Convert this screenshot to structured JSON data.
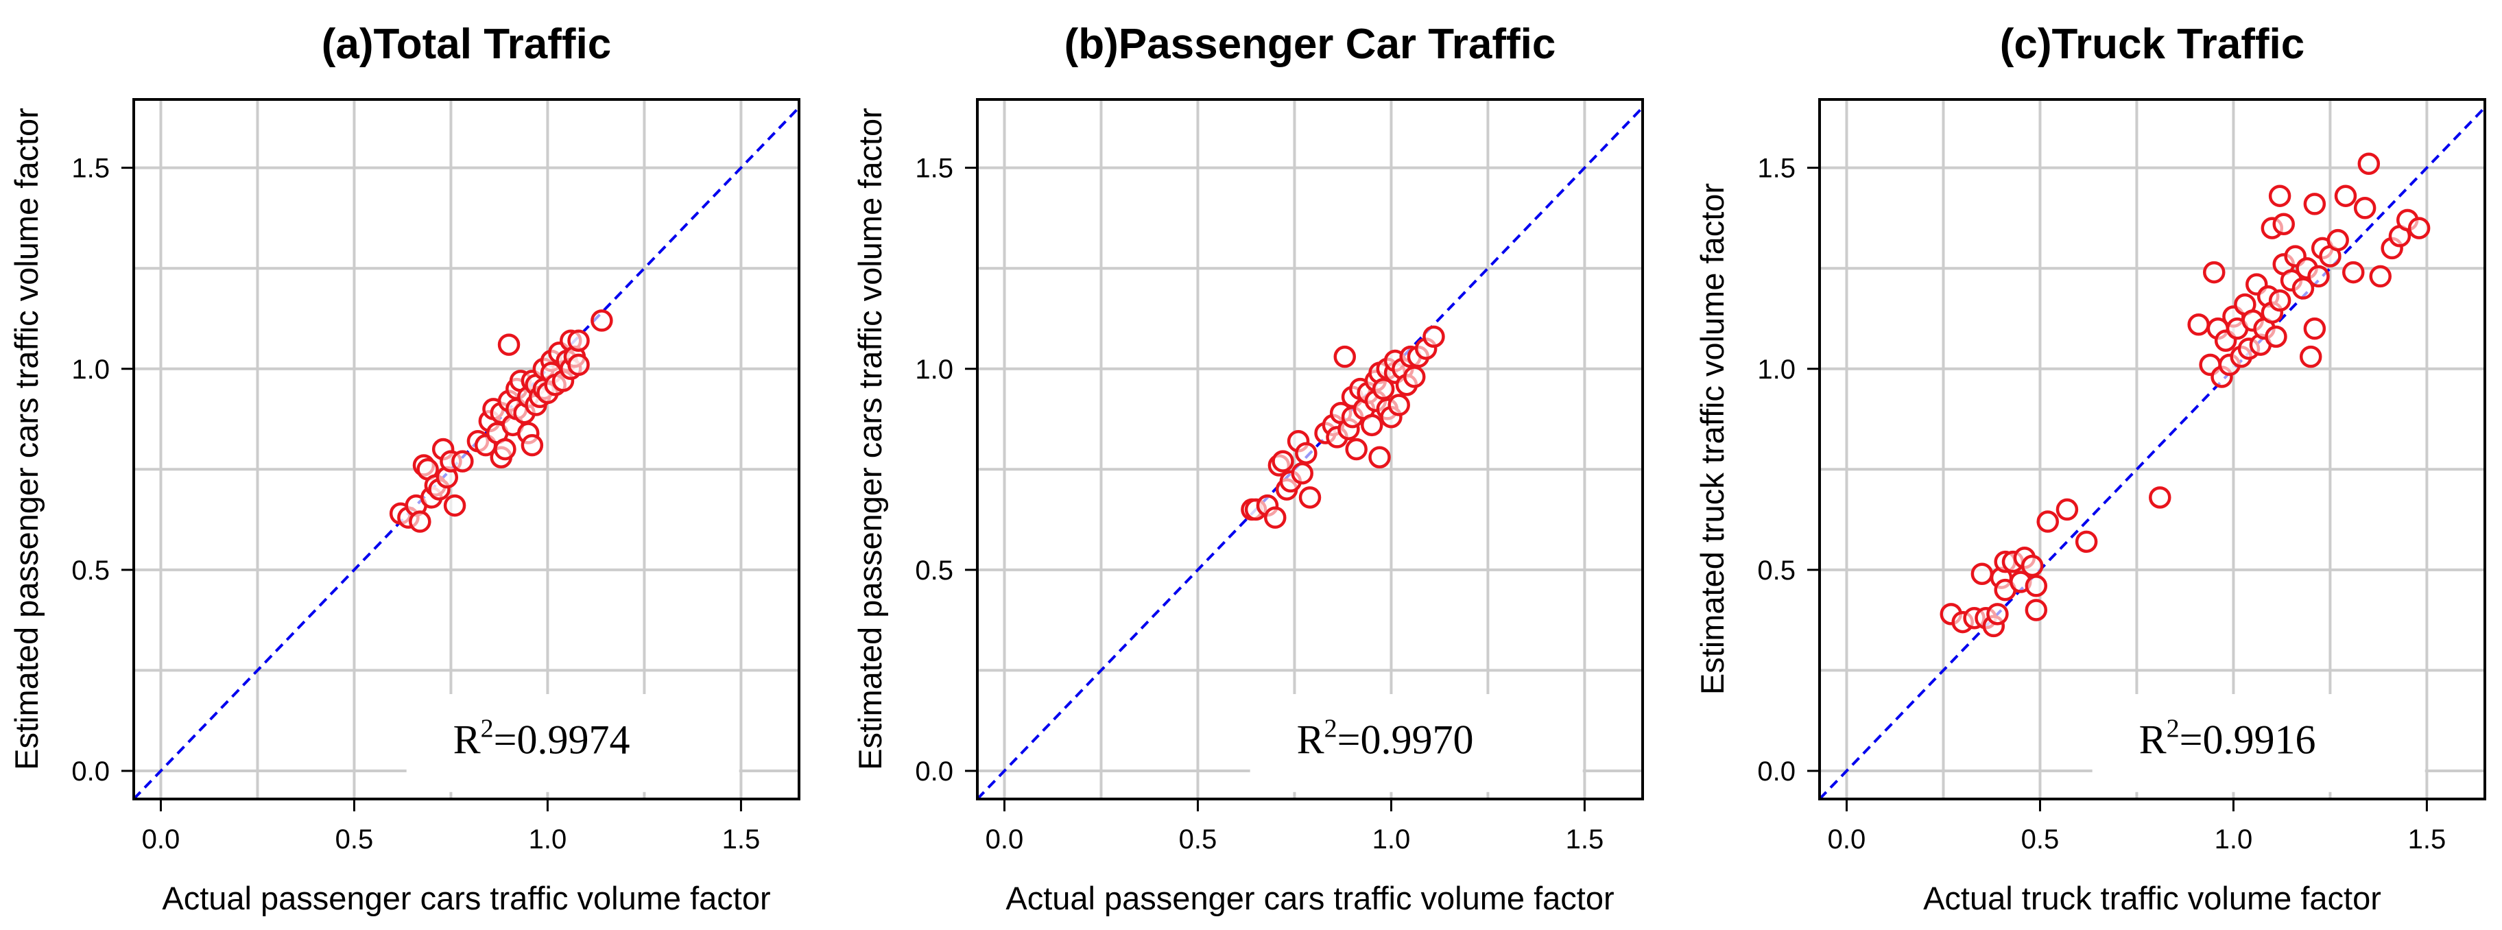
{
  "chart_data": [
    {
      "type": "scatter",
      "title": "(a)Total Traffic",
      "xlabel": "Actual passenger cars traffic volume factor",
      "ylabel": "Estimated passenger cars traffic volume factor",
      "xlim": [
        -0.07,
        1.65
      ],
      "ylim": [
        -0.07,
        1.67
      ],
      "xticks": [
        0.0,
        0.5,
        1.0,
        1.5
      ],
      "yticks": [
        0.0,
        0.5,
        1.0,
        1.5
      ],
      "xtick_labels": [
        "0.0",
        "0.5",
        "1.0",
        "1.5"
      ],
      "ytick_labels": [
        "0.0",
        "0.5",
        "1.0",
        "1.5"
      ],
      "grid": true,
      "r2_prefix": "R",
      "r2_sup": "2",
      "r2_value": "=0.9974",
      "marker_color": "#e8141c",
      "line_color": "#0000ee",
      "points": [
        [
          0.62,
          0.64
        ],
        [
          0.64,
          0.63
        ],
        [
          0.66,
          0.66
        ],
        [
          0.67,
          0.62
        ],
        [
          0.68,
          0.76
        ],
        [
          0.69,
          0.75
        ],
        [
          0.7,
          0.68
        ],
        [
          0.71,
          0.71
        ],
        [
          0.72,
          0.7
        ],
        [
          0.73,
          0.8
        ],
        [
          0.74,
          0.73
        ],
        [
          0.75,
          0.77
        ],
        [
          0.76,
          0.66
        ],
        [
          0.78,
          0.77
        ],
        [
          0.82,
          0.82
        ],
        [
          0.84,
          0.81
        ],
        [
          0.85,
          0.87
        ],
        [
          0.86,
          0.9
        ],
        [
          0.87,
          0.84
        ],
        [
          0.88,
          0.78
        ],
        [
          0.88,
          0.89
        ],
        [
          0.89,
          0.8
        ],
        [
          0.9,
          1.06
        ],
        [
          0.9,
          0.92
        ],
        [
          0.91,
          0.86
        ],
        [
          0.92,
          0.95
        ],
        [
          0.92,
          0.9
        ],
        [
          0.93,
          0.97
        ],
        [
          0.94,
          0.89
        ],
        [
          0.95,
          0.93
        ],
        [
          0.95,
          0.84
        ],
        [
          0.96,
          0.97
        ],
        [
          0.96,
          0.81
        ],
        [
          0.97,
          0.91
        ],
        [
          0.97,
          0.96
        ],
        [
          0.98,
          0.93
        ],
        [
          0.99,
          1.0
        ],
        [
          0.99,
          0.95
        ],
        [
          1.0,
          0.94
        ],
        [
          1.01,
          1.02
        ],
        [
          1.01,
          0.99
        ],
        [
          1.02,
          0.96
        ],
        [
          1.03,
          1.04
        ],
        [
          1.04,
          0.97
        ],
        [
          1.05,
          1.02
        ],
        [
          1.06,
          1.0
        ],
        [
          1.06,
          1.07
        ],
        [
          1.07,
          1.03
        ],
        [
          1.08,
          1.07
        ],
        [
          1.08,
          1.01
        ],
        [
          1.14,
          1.12
        ]
      ]
    },
    {
      "type": "scatter",
      "title": "(b)Passenger Car Traffic",
      "xlabel": "Actual passenger cars traffic volume factor",
      "ylabel": "Estimated passenger cars traffic volume factor",
      "xlim": [
        -0.07,
        1.65
      ],
      "ylim": [
        -0.07,
        1.67
      ],
      "xticks": [
        0.0,
        0.5,
        1.0,
        1.5
      ],
      "yticks": [
        0.0,
        0.5,
        1.0,
        1.5
      ],
      "xtick_labels": [
        "0.0",
        "0.5",
        "1.0",
        "1.5"
      ],
      "ytick_labels": [
        "0.0",
        "0.5",
        "1.0",
        "1.5"
      ],
      "grid": true,
      "r2_prefix": "R",
      "r2_sup": "2",
      "r2_value": "=0.9970",
      "marker_color": "#e8141c",
      "line_color": "#0000ee",
      "points": [
        [
          0.64,
          0.65
        ],
        [
          0.65,
          0.65
        ],
        [
          0.68,
          0.66
        ],
        [
          0.7,
          0.63
        ],
        [
          0.71,
          0.76
        ],
        [
          0.72,
          0.77
        ],
        [
          0.73,
          0.7
        ],
        [
          0.74,
          0.72
        ],
        [
          0.76,
          0.82
        ],
        [
          0.77,
          0.74
        ],
        [
          0.78,
          0.79
        ],
        [
          0.79,
          0.68
        ],
        [
          0.83,
          0.84
        ],
        [
          0.85,
          0.86
        ],
        [
          0.86,
          0.83
        ],
        [
          0.87,
          0.89
        ],
        [
          0.88,
          1.03
        ],
        [
          0.89,
          0.85
        ],
        [
          0.9,
          0.88
        ],
        [
          0.9,
          0.93
        ],
        [
          0.91,
          0.8
        ],
        [
          0.92,
          0.95
        ],
        [
          0.93,
          0.9
        ],
        [
          0.94,
          0.94
        ],
        [
          0.95,
          0.86
        ],
        [
          0.96,
          0.97
        ],
        [
          0.96,
          0.92
        ],
        [
          0.97,
          0.99
        ],
        [
          0.97,
          0.78
        ],
        [
          0.98,
          0.95
        ],
        [
          0.99,
          0.9
        ],
        [
          0.99,
          1.0
        ],
        [
          1.0,
          0.88
        ],
        [
          1.01,
          0.99
        ],
        [
          1.01,
          1.02
        ],
        [
          1.02,
          0.91
        ],
        [
          1.03,
          1.0
        ],
        [
          1.04,
          0.96
        ],
        [
          1.05,
          1.03
        ],
        [
          1.06,
          0.98
        ],
        [
          1.07,
          1.03
        ],
        [
          1.09,
          1.05
        ],
        [
          1.11,
          1.08
        ]
      ]
    },
    {
      "type": "scatter",
      "title": "(c)Truck Traffic",
      "xlabel": "Actual truck traffic volume factor",
      "ylabel": "Estimated truck traffic volume factor",
      "xlim": [
        -0.07,
        1.65
      ],
      "ylim": [
        -0.07,
        1.67
      ],
      "xticks": [
        0.0,
        0.5,
        1.0,
        1.5
      ],
      "yticks": [
        0.0,
        0.5,
        1.0,
        1.5
      ],
      "xtick_labels": [
        "0.0",
        "0.5",
        "1.0",
        "1.5"
      ],
      "ytick_labels": [
        "0.0",
        "0.5",
        "1.0",
        "1.5"
      ],
      "grid": true,
      "r2_prefix": "R",
      "r2_sup": "2",
      "r2_value": "=0.9916",
      "marker_color": "#e8141c",
      "line_color": "#0000ee",
      "points": [
        [
          0.27,
          0.39
        ],
        [
          0.3,
          0.37
        ],
        [
          0.33,
          0.38
        ],
        [
          0.35,
          0.49
        ],
        [
          0.36,
          0.38
        ],
        [
          0.38,
          0.36
        ],
        [
          0.39,
          0.39
        ],
        [
          0.4,
          0.48
        ],
        [
          0.41,
          0.45
        ],
        [
          0.41,
          0.52
        ],
        [
          0.43,
          0.52
        ],
        [
          0.45,
          0.47
        ],
        [
          0.46,
          0.53
        ],
        [
          0.48,
          0.51
        ],
        [
          0.49,
          0.46
        ],
        [
          0.49,
          0.4
        ],
        [
          0.52,
          0.62
        ],
        [
          0.57,
          0.65
        ],
        [
          0.62,
          0.57
        ],
        [
          0.81,
          0.68
        ],
        [
          0.91,
          1.11
        ],
        [
          0.94,
          1.01
        ],
        [
          0.95,
          1.24
        ],
        [
          0.96,
          1.1
        ],
        [
          0.97,
          0.98
        ],
        [
          0.98,
          1.07
        ],
        [
          0.99,
          1.01
        ],
        [
          1.0,
          1.13
        ],
        [
          1.01,
          1.1
        ],
        [
          1.02,
          1.03
        ],
        [
          1.03,
          1.16
        ],
        [
          1.04,
          1.05
        ],
        [
          1.05,
          1.12
        ],
        [
          1.06,
          1.21
        ],
        [
          1.07,
          1.06
        ],
        [
          1.08,
          1.1
        ],
        [
          1.09,
          1.18
        ],
        [
          1.1,
          1.14
        ],
        [
          1.1,
          1.35
        ],
        [
          1.11,
          1.08
        ],
        [
          1.12,
          1.43
        ],
        [
          1.12,
          1.17
        ],
        [
          1.13,
          1.26
        ],
        [
          1.13,
          1.36
        ],
        [
          1.15,
          1.22
        ],
        [
          1.16,
          1.28
        ],
        [
          1.18,
          1.2
        ],
        [
          1.19,
          1.25
        ],
        [
          1.2,
          1.03
        ],
        [
          1.21,
          1.41
        ],
        [
          1.21,
          1.1
        ],
        [
          1.22,
          1.23
        ],
        [
          1.23,
          1.3
        ],
        [
          1.25,
          1.28
        ],
        [
          1.27,
          1.32
        ],
        [
          1.29,
          1.43
        ],
        [
          1.31,
          1.24
        ],
        [
          1.34,
          1.4
        ],
        [
          1.35,
          1.51
        ],
        [
          1.38,
          1.23
        ],
        [
          1.41,
          1.3
        ],
        [
          1.43,
          1.33
        ],
        [
          1.45,
          1.37
        ],
        [
          1.48,
          1.35
        ]
      ]
    }
  ]
}
